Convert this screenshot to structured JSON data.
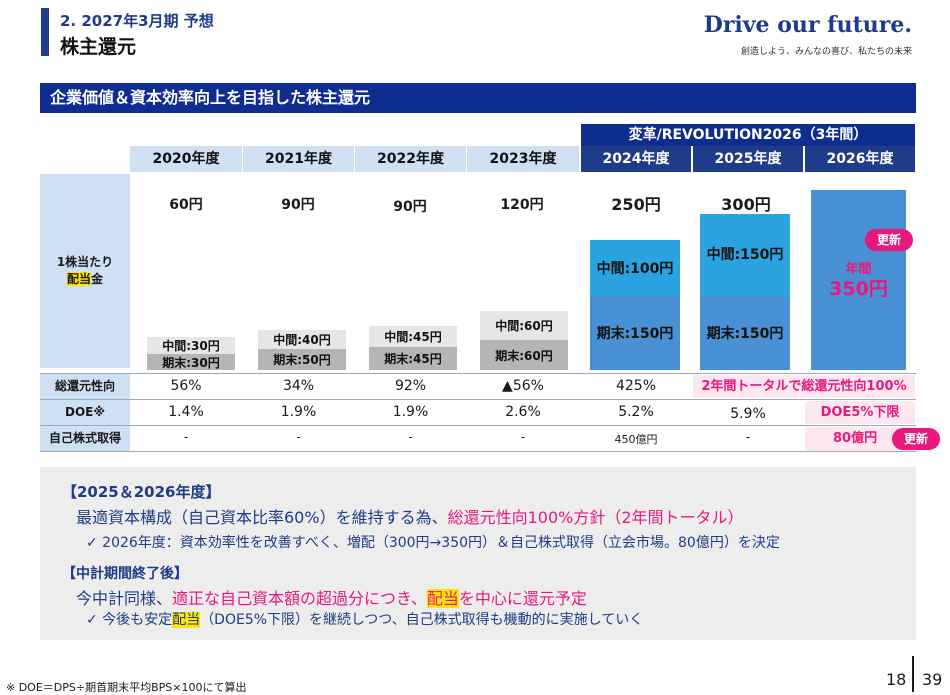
{
  "header": {
    "subtitle": "2. 2027年3月期 予想",
    "title": "株主還元",
    "brand": "Drive our future.",
    "brand_sub": "創造しよう、みんなの喜び、私たちの未来"
  },
  "banner": "企業価値＆資本効率向上を目指した株主還元",
  "plan_label": "変革/REVOLUTION2026（3年間）",
  "years": [
    "2020年度",
    "2021年度",
    "2022年度",
    "2023年度",
    "2024年度",
    "2025年度",
    "2026年度"
  ],
  "dividend_label_1": "1株当たり",
  "dividend_label_2a": "配当",
  "dividend_label_2b": "金",
  "dividends": {
    "totals": [
      "60円",
      "90円",
      "90円",
      "120円",
      "250円",
      "300円"
    ],
    "interim": [
      "中間:30円",
      "中間:40円",
      "中間:45円",
      "中間:60円",
      "中間:100円",
      "中間:150円"
    ],
    "year_end": [
      "期末:30円",
      "期末:50円",
      "期末:45円",
      "期末:60円",
      "期末:150円",
      "期末:150円"
    ],
    "y2026_label": "年間",
    "y2026_value": "350円",
    "update_badge": "更新"
  },
  "rows": {
    "payout_label": "総還元性向",
    "payout": [
      "56%",
      "34%",
      "92%",
      "▲56%",
      "425%"
    ],
    "payout_note": "2年間トータルで総還元性向100%",
    "doe_label": "DOE※",
    "doe": [
      "1.4%",
      "1.9%",
      "1.9%",
      "2.6%",
      "5.2%",
      "5.9%"
    ],
    "doe_2026": "DOE5%下限",
    "buyback_label": "自己株式取得",
    "buyback": [
      "-",
      "-",
      "-",
      "-",
      "450億円",
      "-"
    ],
    "buyback_2026": "80億円",
    "update_badge": "更新"
  },
  "notes": {
    "h1": "【2025＆2026年度】",
    "l1_a": "最適資本構成（自己資本比率60%）を維持する為、",
    "l1_b": "総還元性向100%方針（2年間トータル）",
    "l2": "✓ 2026年度：資本効率性を改善すべく、増配（300円→350円）＆自己株式取得（立会市場。80億円）を決定",
    "h2": "【中計期間終了後】",
    "l3_a": "今中計同様、",
    "l3_b": "適正な自己資本額の超過分につき、",
    "l3_c": "配当",
    "l3_d": "を中心に還元予定",
    "l4_a": "✓ 今後も安定",
    "l4_b": "配当",
    "l4_c": "（DOE5%下限）を継続しつつ、自己株式取得も機動的に実施していく"
  },
  "footnote": "※ DOE＝DPS÷期首期末平均BPS×100にて算出",
  "page": {
    "current": "18",
    "total": "39"
  },
  "colors": {
    "navy": "#0f2d8e",
    "light_blue": "#cfe0f3",
    "bar_blue": "#2aa3e0",
    "pink": "#e8187d",
    "highlight": "#ffe600"
  }
}
